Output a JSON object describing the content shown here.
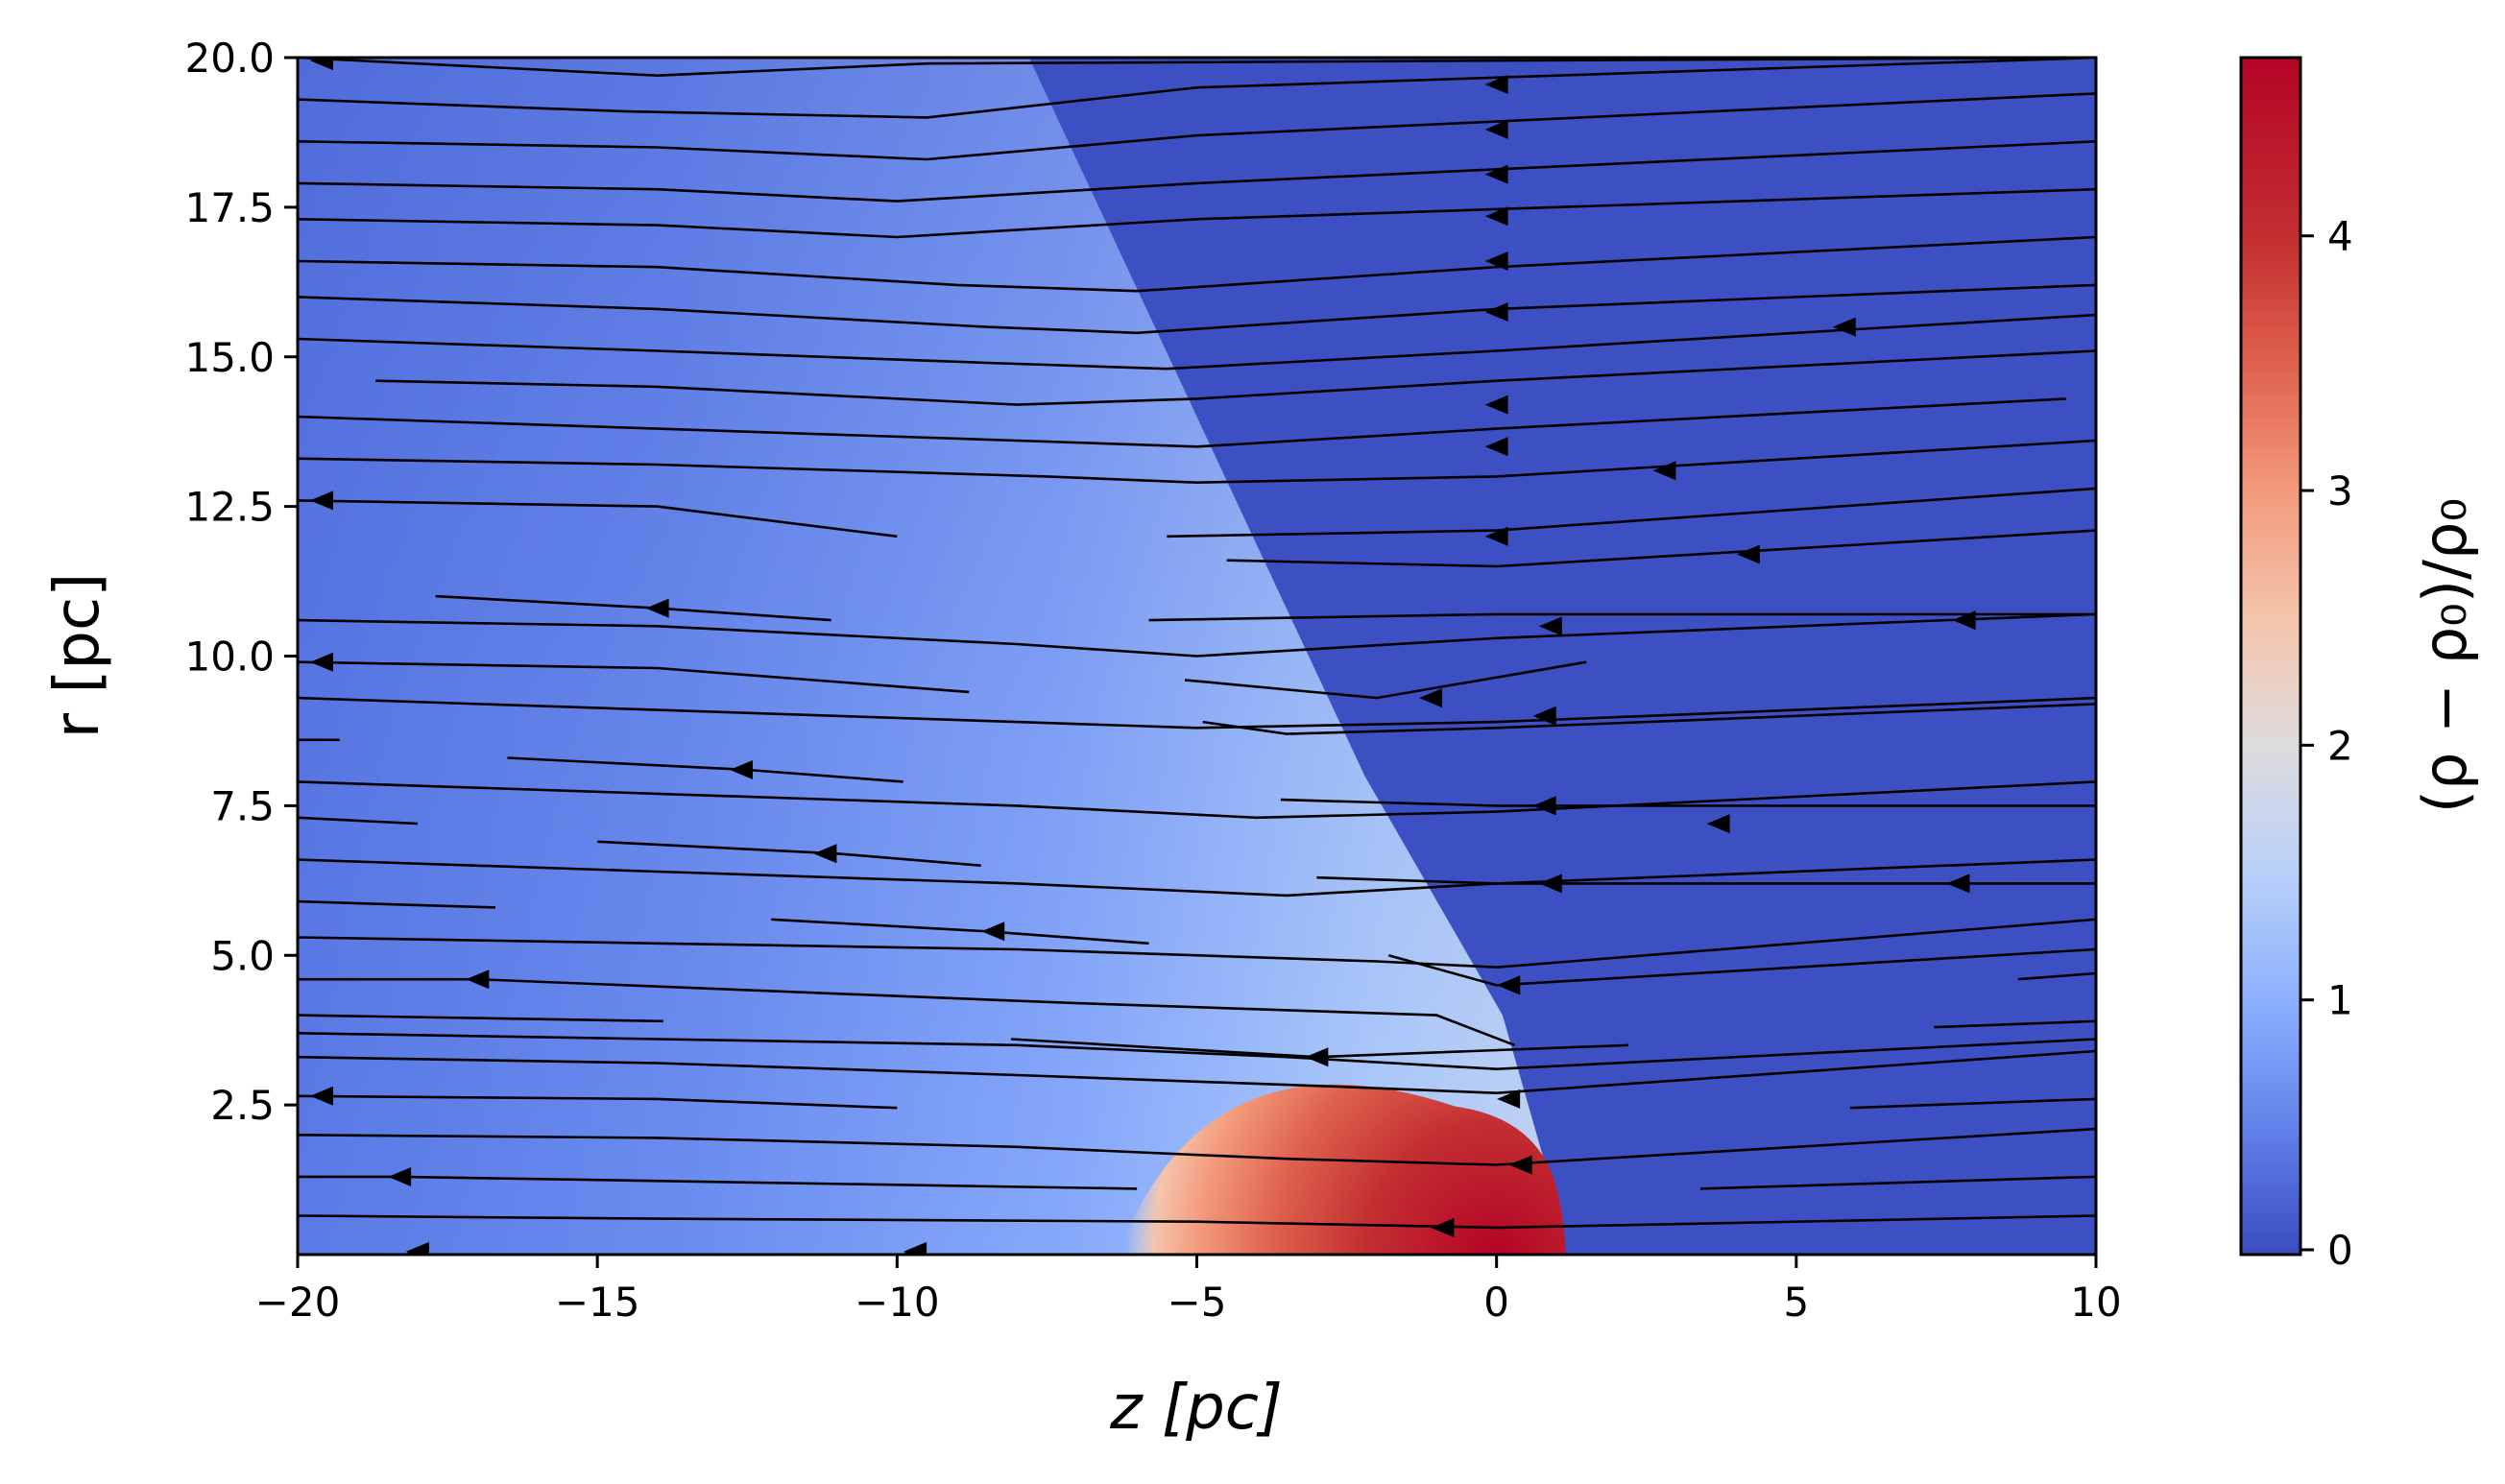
{
  "chart_data": {
    "type": "heatmap",
    "title": "",
    "xlabel": "z [pc]",
    "ylabel": "r [pc]",
    "xlim": [
      -20,
      10
    ],
    "ylim": [
      0,
      20
    ],
    "x_ticks": [
      -20,
      -15,
      -10,
      -5,
      0,
      5,
      10
    ],
    "x_tick_labels": [
      "−20",
      "−15",
      "−10",
      "−5",
      "0",
      "5",
      "10"
    ],
    "y_ticks": [
      2.5,
      5.0,
      7.5,
      10.0,
      12.5,
      15.0,
      17.5,
      20.0
    ],
    "y_tick_labels": [
      "2.5",
      "5.0",
      "7.5",
      "10.0",
      "12.5",
      "15.0",
      "17.5",
      "20.0"
    ],
    "colorbar": {
      "label": "(ρ − ρ₀)/ρ₀",
      "colormap": "coolwarm",
      "range": [
        0,
        4.7
      ],
      "ticks": [
        0,
        1,
        2,
        3,
        4
      ],
      "tick_labels": [
        "0",
        "1",
        "2",
        "3",
        "4"
      ]
    },
    "colormap_stops": [
      {
        "value": 0.0,
        "color": "#3b4cc0"
      },
      {
        "value": 0.5,
        "color": "#6282ea"
      },
      {
        "value": 1.0,
        "color": "#8db0fe"
      },
      {
        "value": 1.5,
        "color": "#b9d0f9"
      },
      {
        "value": 2.0,
        "color": "#dddcdc"
      },
      {
        "value": 2.5,
        "color": "#f5c4ac"
      },
      {
        "value": 3.0,
        "color": "#f39a7b"
      },
      {
        "value": 3.5,
        "color": "#de614d"
      },
      {
        "value": 4.0,
        "color": "#c32e31"
      },
      {
        "value": 4.7,
        "color": "#b40426"
      }
    ],
    "field_regions": {
      "upstream_value": 0.03,
      "shocked_value_range": [
        0.3,
        1.6
      ],
      "peak_value": 4.7,
      "core_radius_pc": 1.15,
      "shock_front": [
        [
          0,
          20
        ],
        [
          -7.8,
          20
        ],
        [
          -5.0,
          14
        ],
        [
          -2.2,
          8
        ],
        [
          0.1,
          4
        ],
        [
          1.1,
          0.5
        ],
        [
          1.15,
          0
        ]
      ]
    },
    "streamlines": [
      {
        "points": [
          [
            -20,
            20
          ],
          [
            -14.0,
            19.7
          ],
          [
            -9.5,
            19.9
          ],
          [
            10,
            20
          ]
        ],
        "arrow": [
          -19.6,
          19.95
        ]
      },
      {
        "points": [
          [
            -20,
            19.3
          ],
          [
            -14.5,
            19.1
          ],
          [
            -9.5,
            19.0
          ],
          [
            -5.0,
            19.5
          ],
          [
            10,
            20
          ]
        ],
        "arrow": [
          0,
          19.55
        ]
      },
      {
        "points": [
          [
            -20,
            18.6
          ],
          [
            -14.0,
            18.5
          ],
          [
            -9.5,
            18.3
          ],
          [
            -5.0,
            18.7
          ],
          [
            10,
            19.4
          ]
        ],
        "arrow": [
          0,
          18.8
        ]
      },
      {
        "points": [
          [
            -20,
            17.9
          ],
          [
            -14.0,
            17.8
          ],
          [
            -10.0,
            17.6
          ],
          [
            -5.0,
            17.9
          ],
          [
            10,
            18.6
          ]
        ],
        "arrow": [
          0,
          18.05
        ]
      },
      {
        "points": [
          [
            -20,
            17.3
          ],
          [
            -14.0,
            17.2
          ],
          [
            -10.0,
            17.0
          ],
          [
            -5.0,
            17.3
          ],
          [
            10,
            17.8
          ]
        ],
        "arrow": [
          0,
          17.35
        ]
      },
      {
        "points": [
          [
            -20,
            16.6
          ],
          [
            -14.0,
            16.5
          ],
          [
            -9.0,
            16.2
          ],
          [
            -6.0,
            16.1
          ],
          [
            0,
            16.5
          ],
          [
            10,
            17.0
          ]
        ],
        "arrow": [
          0,
          16.6
        ]
      },
      {
        "points": [
          [
            -20,
            16.0
          ],
          [
            -14.0,
            15.8
          ],
          [
            -8.5,
            15.5
          ],
          [
            -6.0,
            15.4
          ],
          [
            0,
            15.8
          ],
          [
            10,
            16.2
          ]
        ],
        "arrow": [
          0,
          15.75
        ]
      },
      {
        "points": [
          [
            -20,
            15.3
          ],
          [
            -14.0,
            15.1
          ],
          [
            -8.5,
            14.9
          ],
          [
            -5.5,
            14.8
          ],
          [
            0,
            15.1
          ],
          [
            10,
            15.7
          ]
        ],
        "arrow": [
          5.8,
          15.5
        ]
      },
      {
        "points": [
          [
            -18.7,
            14.6
          ],
          [
            -14.0,
            14.5
          ],
          [
            -8.0,
            14.2
          ],
          [
            -5.0,
            14.3
          ],
          [
            0,
            14.6
          ],
          [
            10,
            15.1
          ]
        ],
        "arrow": [
          0,
          14.2
        ]
      },
      {
        "points": [
          [
            -20,
            14.0
          ],
          [
            -14.0,
            13.8
          ],
          [
            -8.0,
            13.6
          ],
          [
            -5.0,
            13.5
          ],
          [
            0,
            13.8
          ],
          [
            9.5,
            14.3
          ]
        ],
        "arrow": [
          0,
          13.5
        ]
      },
      {
        "points": [
          [
            -20,
            13.3
          ],
          [
            -14.0,
            13.2
          ],
          [
            -7.5,
            13.0
          ],
          [
            -5.0,
            12.9
          ],
          [
            0,
            13.0
          ],
          [
            10,
            13.6
          ]
        ],
        "arrow": [
          2.8,
          13.1
        ]
      },
      {
        "points": [
          [
            -20,
            12.6
          ],
          [
            -14.0,
            12.5
          ],
          [
            -10.0,
            12.0
          ]
        ],
        "arrow": [
          -19.6,
          12.6
        ]
      },
      {
        "points": [
          [
            -5.5,
            12.0
          ],
          [
            0,
            12.1
          ],
          [
            10,
            12.8
          ]
        ],
        "arrow": [
          0,
          12.0
        ]
      },
      {
        "points": [
          [
            -4.5,
            11.6
          ],
          [
            0,
            11.5
          ],
          [
            10,
            12.1
          ]
        ],
        "arrow": [
          4.2,
          11.7
        ]
      },
      {
        "points": [
          [
            -17.7,
            11.0
          ],
          [
            -14.0,
            10.8
          ],
          [
            -11.1,
            10.6
          ]
        ],
        "arrow": [
          -14.0,
          10.8
        ]
      },
      {
        "points": [
          [
            -20,
            10.6
          ],
          [
            -14.0,
            10.5
          ],
          [
            -8.0,
            10.2
          ],
          [
            -5.0,
            10.0
          ],
          [
            0,
            10.3
          ],
          [
            10,
            10.7
          ]
        ],
        "arrow": [
          0.9,
          10.5
        ]
      },
      {
        "points": [
          [
            -5.8,
            10.6
          ],
          [
            0,
            10.7
          ],
          [
            10,
            10.7
          ]
        ],
        "arrow": [
          7.8,
          10.6
        ]
      },
      {
        "points": [
          [
            -20,
            9.9
          ],
          [
            -14.0,
            9.8
          ],
          [
            -8.8,
            9.4
          ]
        ],
        "arrow": [
          -19.6,
          9.9
        ]
      },
      {
        "points": [
          [
            -5.2,
            9.6
          ],
          [
            -2.0,
            9.3
          ],
          [
            1.5,
            9.9
          ]
        ],
        "arrow": [
          -1.1,
          9.3
        ]
      },
      {
        "points": [
          [
            -20,
            9.3
          ],
          [
            -14.0,
            9.1
          ],
          [
            -8.0,
            8.9
          ],
          [
            -5.0,
            8.8
          ],
          [
            0,
            8.9
          ],
          [
            10,
            9.3
          ]
        ],
        "arrow": [
          0.8,
          9.0
        ]
      },
      {
        "points": [
          [
            -4.9,
            8.9
          ],
          [
            -3.5,
            8.7
          ],
          [
            0,
            8.8
          ],
          [
            10,
            9.2
          ]
        ],
        "arrow": [
          0.8,
          9.0
        ]
      },
      {
        "points": [
          [
            -20,
            8.6
          ],
          [
            -19.3,
            8.6
          ]
        ],
        "arrow": null
      },
      {
        "points": [
          [
            -16.5,
            8.3
          ],
          [
            -12.5,
            8.1
          ],
          [
            -9.9,
            7.9
          ]
        ],
        "arrow": [
          -12.6,
          8.1
        ]
      },
      {
        "points": [
          [
            -20,
            7.9
          ],
          [
            -14.0,
            7.7
          ],
          [
            -8.0,
            7.5
          ],
          [
            -4.0,
            7.3
          ],
          [
            0,
            7.4
          ],
          [
            10,
            7.9
          ]
        ],
        "arrow": [
          0.8,
          7.5
        ]
      },
      {
        "points": [
          [
            -20,
            7.3
          ],
          [
            -18.0,
            7.2
          ]
        ],
        "arrow": null
      },
      {
        "points": [
          [
            -3.6,
            7.6
          ],
          [
            0,
            7.5
          ],
          [
            10,
            7.5
          ]
        ],
        "arrow": [
          3.7,
          7.2
        ]
      },
      {
        "points": [
          [
            -15.0,
            6.9
          ],
          [
            -11.0,
            6.7
          ],
          [
            -8.6,
            6.5
          ]
        ],
        "arrow": [
          -11.2,
          6.7
        ]
      },
      {
        "points": [
          [
            -20,
            6.6
          ],
          [
            -14.0,
            6.4
          ],
          [
            -8.0,
            6.2
          ],
          [
            -3.5,
            6.0
          ],
          [
            0,
            6.2
          ],
          [
            10,
            6.6
          ]
        ],
        "arrow": [
          0.9,
          6.2
        ]
      },
      {
        "points": [
          [
            -3.0,
            6.3
          ],
          [
            0,
            6.2
          ],
          [
            10,
            6.2
          ]
        ],
        "arrow": [
          7.7,
          6.2
        ]
      },
      {
        "points": [
          [
            -20,
            5.9
          ],
          [
            -16.7,
            5.8
          ]
        ],
        "arrow": null
      },
      {
        "points": [
          [
            -12.1,
            5.6
          ],
          [
            -8.5,
            5.4
          ],
          [
            -5.8,
            5.2
          ]
        ],
        "arrow": [
          -8.4,
          5.4
        ]
      },
      {
        "points": [
          [
            -20,
            5.3
          ],
          [
            -14.0,
            5.2
          ],
          [
            -8.0,
            5.1
          ],
          [
            -2.0,
            4.9
          ],
          [
            0,
            4.8
          ],
          [
            10,
            5.6
          ]
        ],
        "arrow": [
          0.2,
          4.5
        ]
      },
      {
        "points": [
          [
            -1.8,
            5.0
          ],
          [
            0,
            4.5
          ],
          [
            10,
            5.1
          ]
        ],
        "arrow": [
          0.2,
          4.5
        ]
      },
      {
        "points": [
          [
            -20,
            4.6
          ],
          [
            -17.0,
            4.6
          ],
          [
            -12.0,
            4.4
          ],
          [
            -7.0,
            4.2
          ],
          [
            -1.0,
            4.0
          ],
          [
            0.3,
            3.5
          ]
        ],
        "arrow": [
          -17.0,
          4.6
        ]
      },
      {
        "points": [
          [
            8.7,
            4.6
          ],
          [
            10,
            4.7
          ]
        ],
        "arrow": null
      },
      {
        "points": [
          [
            -20,
            4.0
          ],
          [
            -13.9,
            3.9
          ]
        ],
        "arrow": null
      },
      {
        "points": [
          [
            -20,
            3.7
          ],
          [
            -14.0,
            3.6
          ],
          [
            -8.0,
            3.5
          ],
          [
            -3.5,
            3.3
          ],
          [
            0,
            3.1
          ],
          [
            10,
            3.6
          ]
        ],
        "arrow": null
      },
      {
        "points": [
          [
            7.3,
            3.8
          ],
          [
            10,
            3.9
          ]
        ],
        "arrow": null
      },
      {
        "points": [
          [
            -8.1,
            3.6
          ],
          [
            -3.0,
            3.3
          ],
          [
            2.2,
            3.5
          ]
        ],
        "arrow": [
          -3.0,
          3.3
        ]
      },
      {
        "points": [
          [
            -20,
            3.3
          ],
          [
            -14.0,
            3.2
          ],
          [
            -8.0,
            3.0
          ],
          [
            -2.5,
            2.8
          ],
          [
            0,
            2.7
          ],
          [
            10,
            3.4
          ]
        ],
        "arrow": [
          0.2,
          2.6
        ]
      },
      {
        "points": [
          [
            -20,
            2.65
          ],
          [
            -14.0,
            2.6
          ],
          [
            -10.0,
            2.45
          ]
        ],
        "arrow": [
          -19.6,
          2.65
        ]
      },
      {
        "points": [
          [
            -20,
            2.0
          ],
          [
            -14.0,
            1.95
          ],
          [
            -8.0,
            1.8
          ],
          [
            -3.5,
            1.6
          ],
          [
            0,
            1.5
          ],
          [
            10,
            2.1
          ]
        ],
        "arrow": [
          0.4,
          1.5
        ]
      },
      {
        "points": [
          [
            5.9,
            2.45
          ],
          [
            10,
            2.6
          ]
        ],
        "arrow": null
      },
      {
        "points": [
          [
            -20,
            1.3
          ],
          [
            -18.3,
            1.3
          ],
          [
            -6.0,
            1.1
          ]
        ],
        "arrow": [
          -18.3,
          1.3
        ]
      },
      {
        "points": [
          [
            3.4,
            1.1
          ],
          [
            10,
            1.3
          ]
        ],
        "arrow": null
      },
      {
        "points": [
          [
            -20,
            0.65
          ],
          [
            -14.0,
            0.6
          ],
          [
            -5.0,
            0.55
          ],
          [
            0,
            0.45
          ],
          [
            10,
            0.65
          ]
        ],
        "arrow": [
          -0.9,
          0.45
        ]
      },
      {
        "points": [
          [
            -18.2,
            0.0
          ],
          [
            -17.9,
            0.08
          ]
        ],
        "arrow": [
          -18.0,
          0.05
        ]
      },
      {
        "points": [
          [
            -9.9,
            0.0
          ],
          [
            -9.6,
            0.08
          ]
        ],
        "arrow": [
          -9.7,
          0.05
        ]
      }
    ]
  }
}
